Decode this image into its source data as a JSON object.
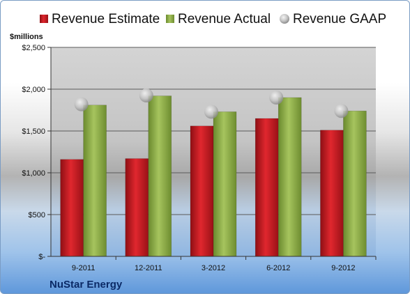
{
  "chart_data": {
    "type": "bar",
    "categories": [
      "9-2011",
      "12-2011",
      "3-2012",
      "6-2012",
      "9-2012"
    ],
    "series": [
      {
        "name": "Revenue Estimate",
        "kind": "bar",
        "color": "#c8181f",
        "values": [
          1160,
          1170,
          1560,
          1650,
          1510
        ]
      },
      {
        "name": "Revenue Actual",
        "kind": "bar",
        "color": "#8fae48",
        "values": [
          1810,
          1920,
          1730,
          1900,
          1740
        ]
      },
      {
        "name": "Revenue GAAP",
        "kind": "marker",
        "color": "#c0c0c0",
        "values": [
          1820,
          1925,
          1730,
          1900,
          1740
        ]
      }
    ],
    "ylim": [
      0,
      2500
    ],
    "yticks": [
      0,
      500,
      1000,
      1500,
      2000,
      2500
    ],
    "ytick_labels": [
      "$-",
      "$500",
      "$1,000",
      "$1,500",
      "$2,000",
      "$2,500"
    ],
    "ylabel": "$millions",
    "xlabel": "",
    "grid": true,
    "legend_position": "top"
  },
  "footer": {
    "company": "NuStar Energy"
  }
}
